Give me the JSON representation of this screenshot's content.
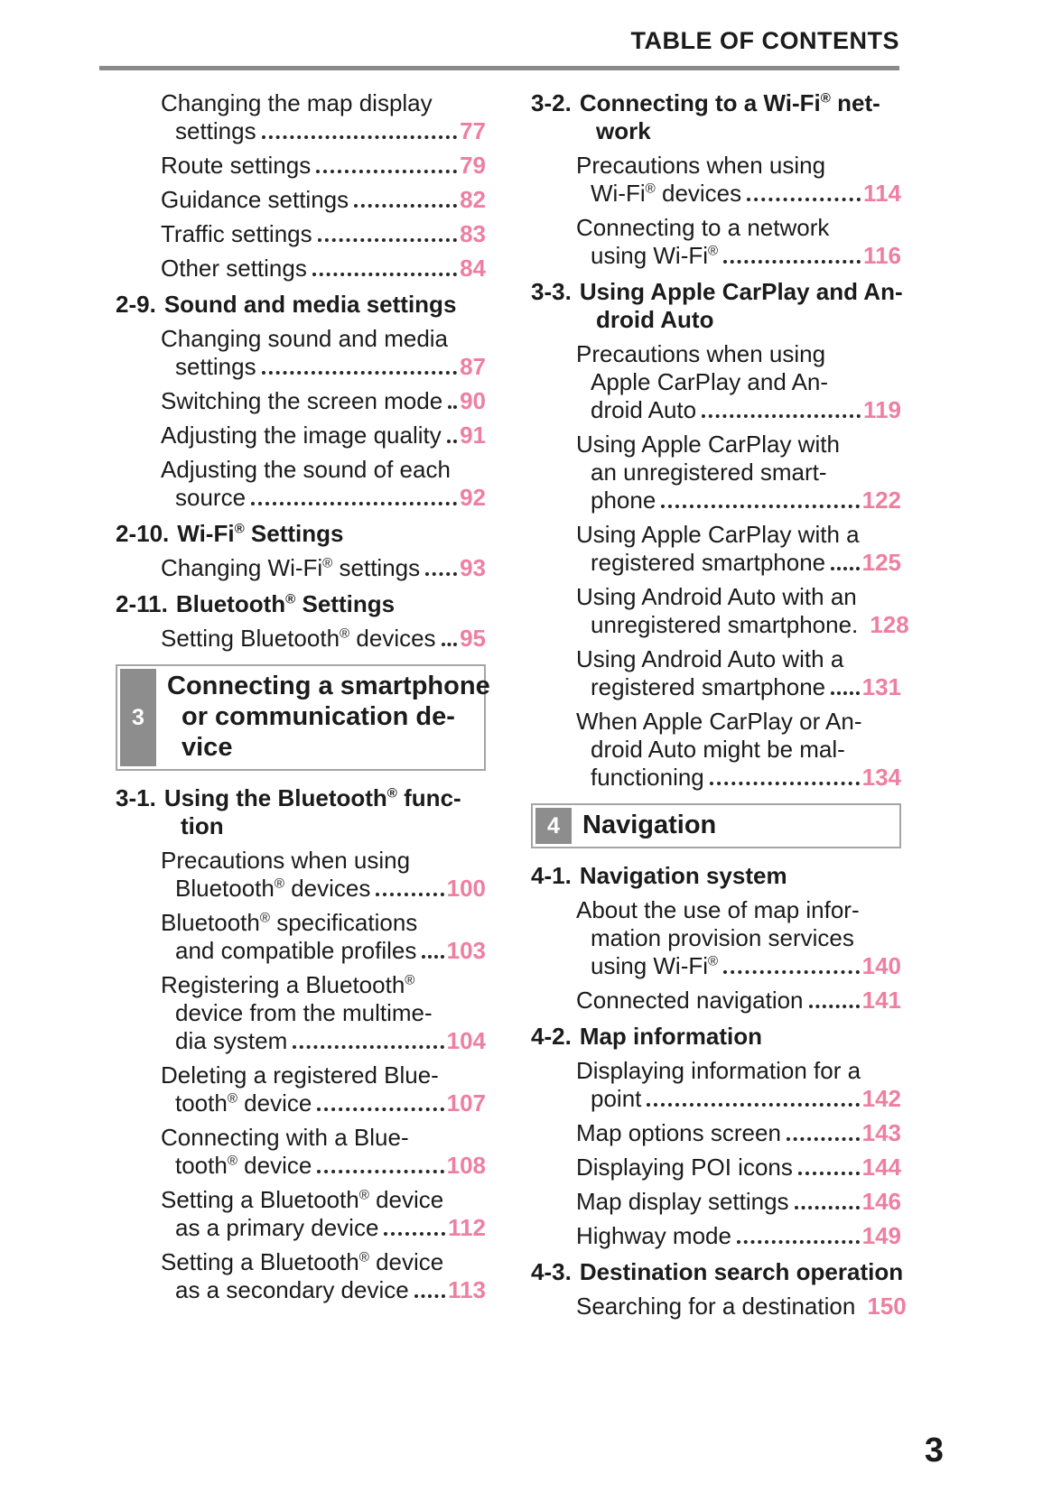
{
  "header": {
    "title": "TABLE OF CONTENTS"
  },
  "footer": {
    "page_number": "3"
  },
  "colors": {
    "accent_pink": "#ee7fa2",
    "text_black": "#1b1b1b",
    "rule_gray": "#8a8a8a",
    "tab_gray": "#8d8d8d",
    "box_border_gray": "#a5a5a5"
  },
  "columns": {
    "left": [
      {
        "type": "entry",
        "lines": [
          "Changing the map display",
          "settings"
        ],
        "page": "77"
      },
      {
        "type": "entry",
        "lines": [
          "Route settings"
        ],
        "page": "79"
      },
      {
        "type": "entry",
        "lines": [
          "Guidance settings"
        ],
        "page": "82"
      },
      {
        "type": "entry",
        "lines": [
          "Traffic settings"
        ],
        "page": "83"
      },
      {
        "type": "entry",
        "lines": [
          "Other settings"
        ],
        "page": "84"
      },
      {
        "type": "section",
        "num": "2-9.",
        "lines": [
          "Sound and media settings"
        ]
      },
      {
        "type": "entry",
        "lines": [
          "Changing sound and media",
          "settings"
        ],
        "page": "87"
      },
      {
        "type": "entry",
        "lines": [
          "Switching the screen mode"
        ],
        "page": "90"
      },
      {
        "type": "entry",
        "lines": [
          "Adjusting the image quality"
        ],
        "page": "91"
      },
      {
        "type": "entry",
        "lines": [
          "Adjusting the sound of each",
          "source"
        ],
        "page": "92"
      },
      {
        "type": "section",
        "num": "2-10.",
        "lines": [
          "Wi-Fi® Settings"
        ]
      },
      {
        "type": "entry",
        "lines": [
          "Changing Wi-Fi® settings"
        ],
        "page": "93"
      },
      {
        "type": "section",
        "num": "2-11.",
        "lines": [
          "Bluetooth® Settings"
        ]
      },
      {
        "type": "entry",
        "lines": [
          "Setting Bluetooth® devices"
        ],
        "page": "95"
      },
      {
        "type": "chapter",
        "num": "3",
        "lines": [
          "Connecting a smartphone",
          "or communication de-",
          "vice"
        ]
      },
      {
        "type": "section",
        "num": "3-1.",
        "lines": [
          "Using the Bluetooth® func-",
          "tion"
        ]
      },
      {
        "type": "entry",
        "lines": [
          "Precautions when using",
          "Bluetooth® devices"
        ],
        "page": "100"
      },
      {
        "type": "entry",
        "lines": [
          "Bluetooth® specifications",
          "and compatible profiles"
        ],
        "page": "103"
      },
      {
        "type": "entry",
        "lines": [
          "Registering a Bluetooth®",
          "device from the multime-",
          "dia system"
        ],
        "page": "104"
      },
      {
        "type": "entry",
        "lines": [
          "Deleting a registered Blue-",
          "tooth® device"
        ],
        "page": "107"
      },
      {
        "type": "entry",
        "lines": [
          "Connecting with a Blue-",
          "tooth® device"
        ],
        "page": "108"
      },
      {
        "type": "entry",
        "lines": [
          "Setting a Bluetooth® device",
          "as a primary device"
        ],
        "page": "112"
      },
      {
        "type": "entry",
        "lines": [
          "Setting a Bluetooth® device",
          "as a secondary device"
        ],
        "page": "113"
      }
    ],
    "right": [
      {
        "type": "section",
        "num": "3-2.",
        "lines": [
          "Connecting to a Wi-Fi® net-",
          "work"
        ]
      },
      {
        "type": "entry",
        "lines": [
          "Precautions when using",
          "Wi-Fi® devices"
        ],
        "page": "114"
      },
      {
        "type": "entry",
        "lines": [
          "Connecting to a network",
          "using Wi-Fi®"
        ],
        "page": "116"
      },
      {
        "type": "section",
        "num": "3-3.",
        "lines": [
          "Using Apple CarPlay and An-",
          "droid Auto"
        ]
      },
      {
        "type": "entry",
        "lines": [
          "Precautions when using",
          "Apple CarPlay and An-",
          "droid Auto"
        ],
        "page": "119"
      },
      {
        "type": "entry",
        "lines": [
          "Using Apple CarPlay with",
          "an unregistered smart-",
          "phone"
        ],
        "page": "122"
      },
      {
        "type": "entry",
        "lines": [
          "Using Apple CarPlay with a",
          "registered smartphone"
        ],
        "page": "125"
      },
      {
        "type": "entry",
        "lines": [
          "Using Android Auto with an",
          "unregistered smartphone."
        ],
        "page": "128",
        "leader": false
      },
      {
        "type": "entry",
        "lines": [
          "Using Android Auto with a",
          "registered smartphone"
        ],
        "page": "131"
      },
      {
        "type": "entry",
        "lines": [
          "When Apple CarPlay or An-",
          "droid Auto might be mal-",
          "functioning"
        ],
        "page": "134"
      },
      {
        "type": "chapter",
        "num": "4",
        "lines": [
          "Navigation"
        ]
      },
      {
        "type": "section",
        "num": "4-1.",
        "lines": [
          "Navigation system"
        ]
      },
      {
        "type": "entry",
        "lines": [
          "About the use of map infor-",
          "mation provision services",
          "using Wi-Fi®"
        ],
        "page": "140"
      },
      {
        "type": "entry",
        "lines": [
          "Connected navigation"
        ],
        "page": "141"
      },
      {
        "type": "section",
        "num": "4-2.",
        "lines": [
          "Map information"
        ]
      },
      {
        "type": "entry",
        "lines": [
          "Displaying information for a",
          "point"
        ],
        "page": "142"
      },
      {
        "type": "entry",
        "lines": [
          "Map options screen"
        ],
        "page": "143"
      },
      {
        "type": "entry",
        "lines": [
          "Displaying POI icons"
        ],
        "page": "144"
      },
      {
        "type": "entry",
        "lines": [
          "Map display settings"
        ],
        "page": "146"
      },
      {
        "type": "entry",
        "lines": [
          "Highway mode"
        ],
        "page": "149"
      },
      {
        "type": "section",
        "num": "4-3.",
        "lines": [
          "Destination search operation"
        ]
      },
      {
        "type": "entry",
        "lines": [
          "Searching for a destination"
        ],
        "page": "150",
        "leader": false
      }
    ]
  }
}
